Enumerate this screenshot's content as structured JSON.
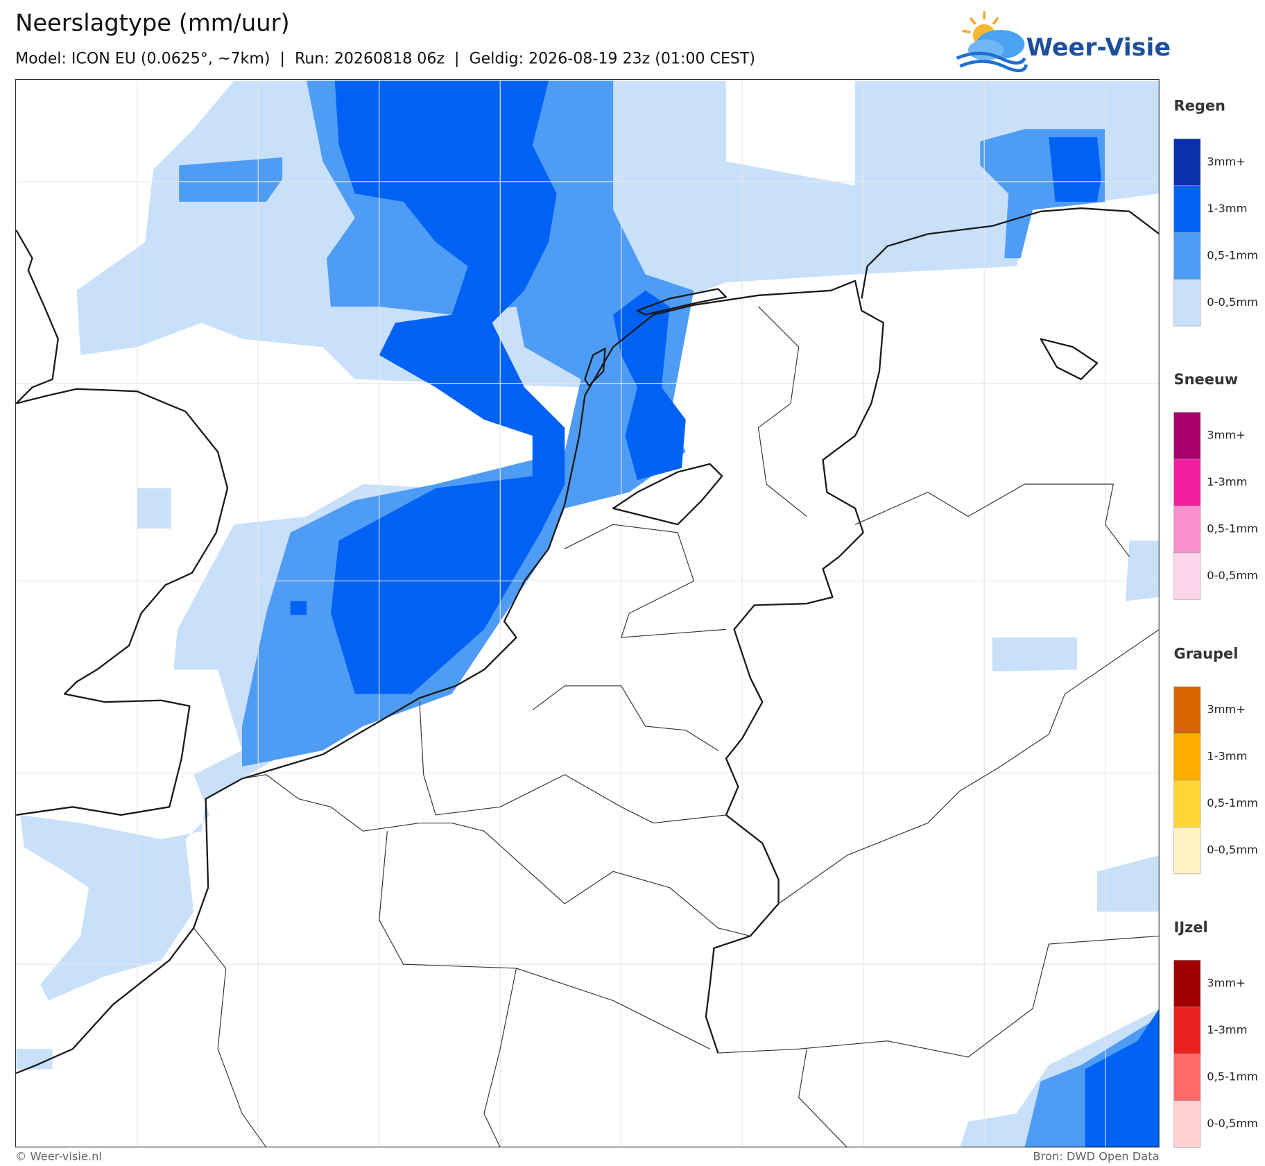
{
  "header": {
    "title": "Neerslagtype (mm/uur)",
    "subtitle": "Model: ICON EU (0.0625°, ~7km)  |  Run: 20260818 06z  |  Geldig: 2026-08-19 23z (01:00 CEST)",
    "logo": "Weer-Visie"
  },
  "legend": [
    {
      "title": "Regen",
      "items": [
        {
          "label": "3mm+",
          "color": "#0a2fa8"
        },
        {
          "label": "1-3mm",
          "color": "#0062f5"
        },
        {
          "label": "0,5-1mm",
          "color": "#4f9cf4"
        },
        {
          "label": "0-0,5mm",
          "color": "#c9e0fb"
        }
      ]
    },
    {
      "title": "Sneeuw",
      "items": [
        {
          "label": "3mm+",
          "color": "#a8006a"
        },
        {
          "label": "1-3mm",
          "color": "#f21ea1"
        },
        {
          "label": "0,5-1mm",
          "color": "#f890cd"
        },
        {
          "label": "0-0,5mm",
          "color": "#fdd6eb"
        }
      ]
    },
    {
      "title": "Graupel",
      "items": [
        {
          "label": "3mm+",
          "color": "#d96500"
        },
        {
          "label": "1-3mm",
          "color": "#ffab00"
        },
        {
          "label": "0,5-1mm",
          "color": "#ffd535"
        },
        {
          "label": "0-0,5mm",
          "color": "#fff2c4"
        }
      ]
    },
    {
      "title": "IJzel",
      "items": [
        {
          "label": "3mm+",
          "color": "#a00000"
        },
        {
          "label": "1-3mm",
          "color": "#e8221f"
        },
        {
          "label": "0,5-1mm",
          "color": "#ff6a6a"
        },
        {
          "label": "0-0,5mm",
          "color": "#ffd0d0"
        }
      ]
    }
  ],
  "footer": {
    "left": "© Weer-visie.nl",
    "right": "Bron: DWD Open Data"
  }
}
